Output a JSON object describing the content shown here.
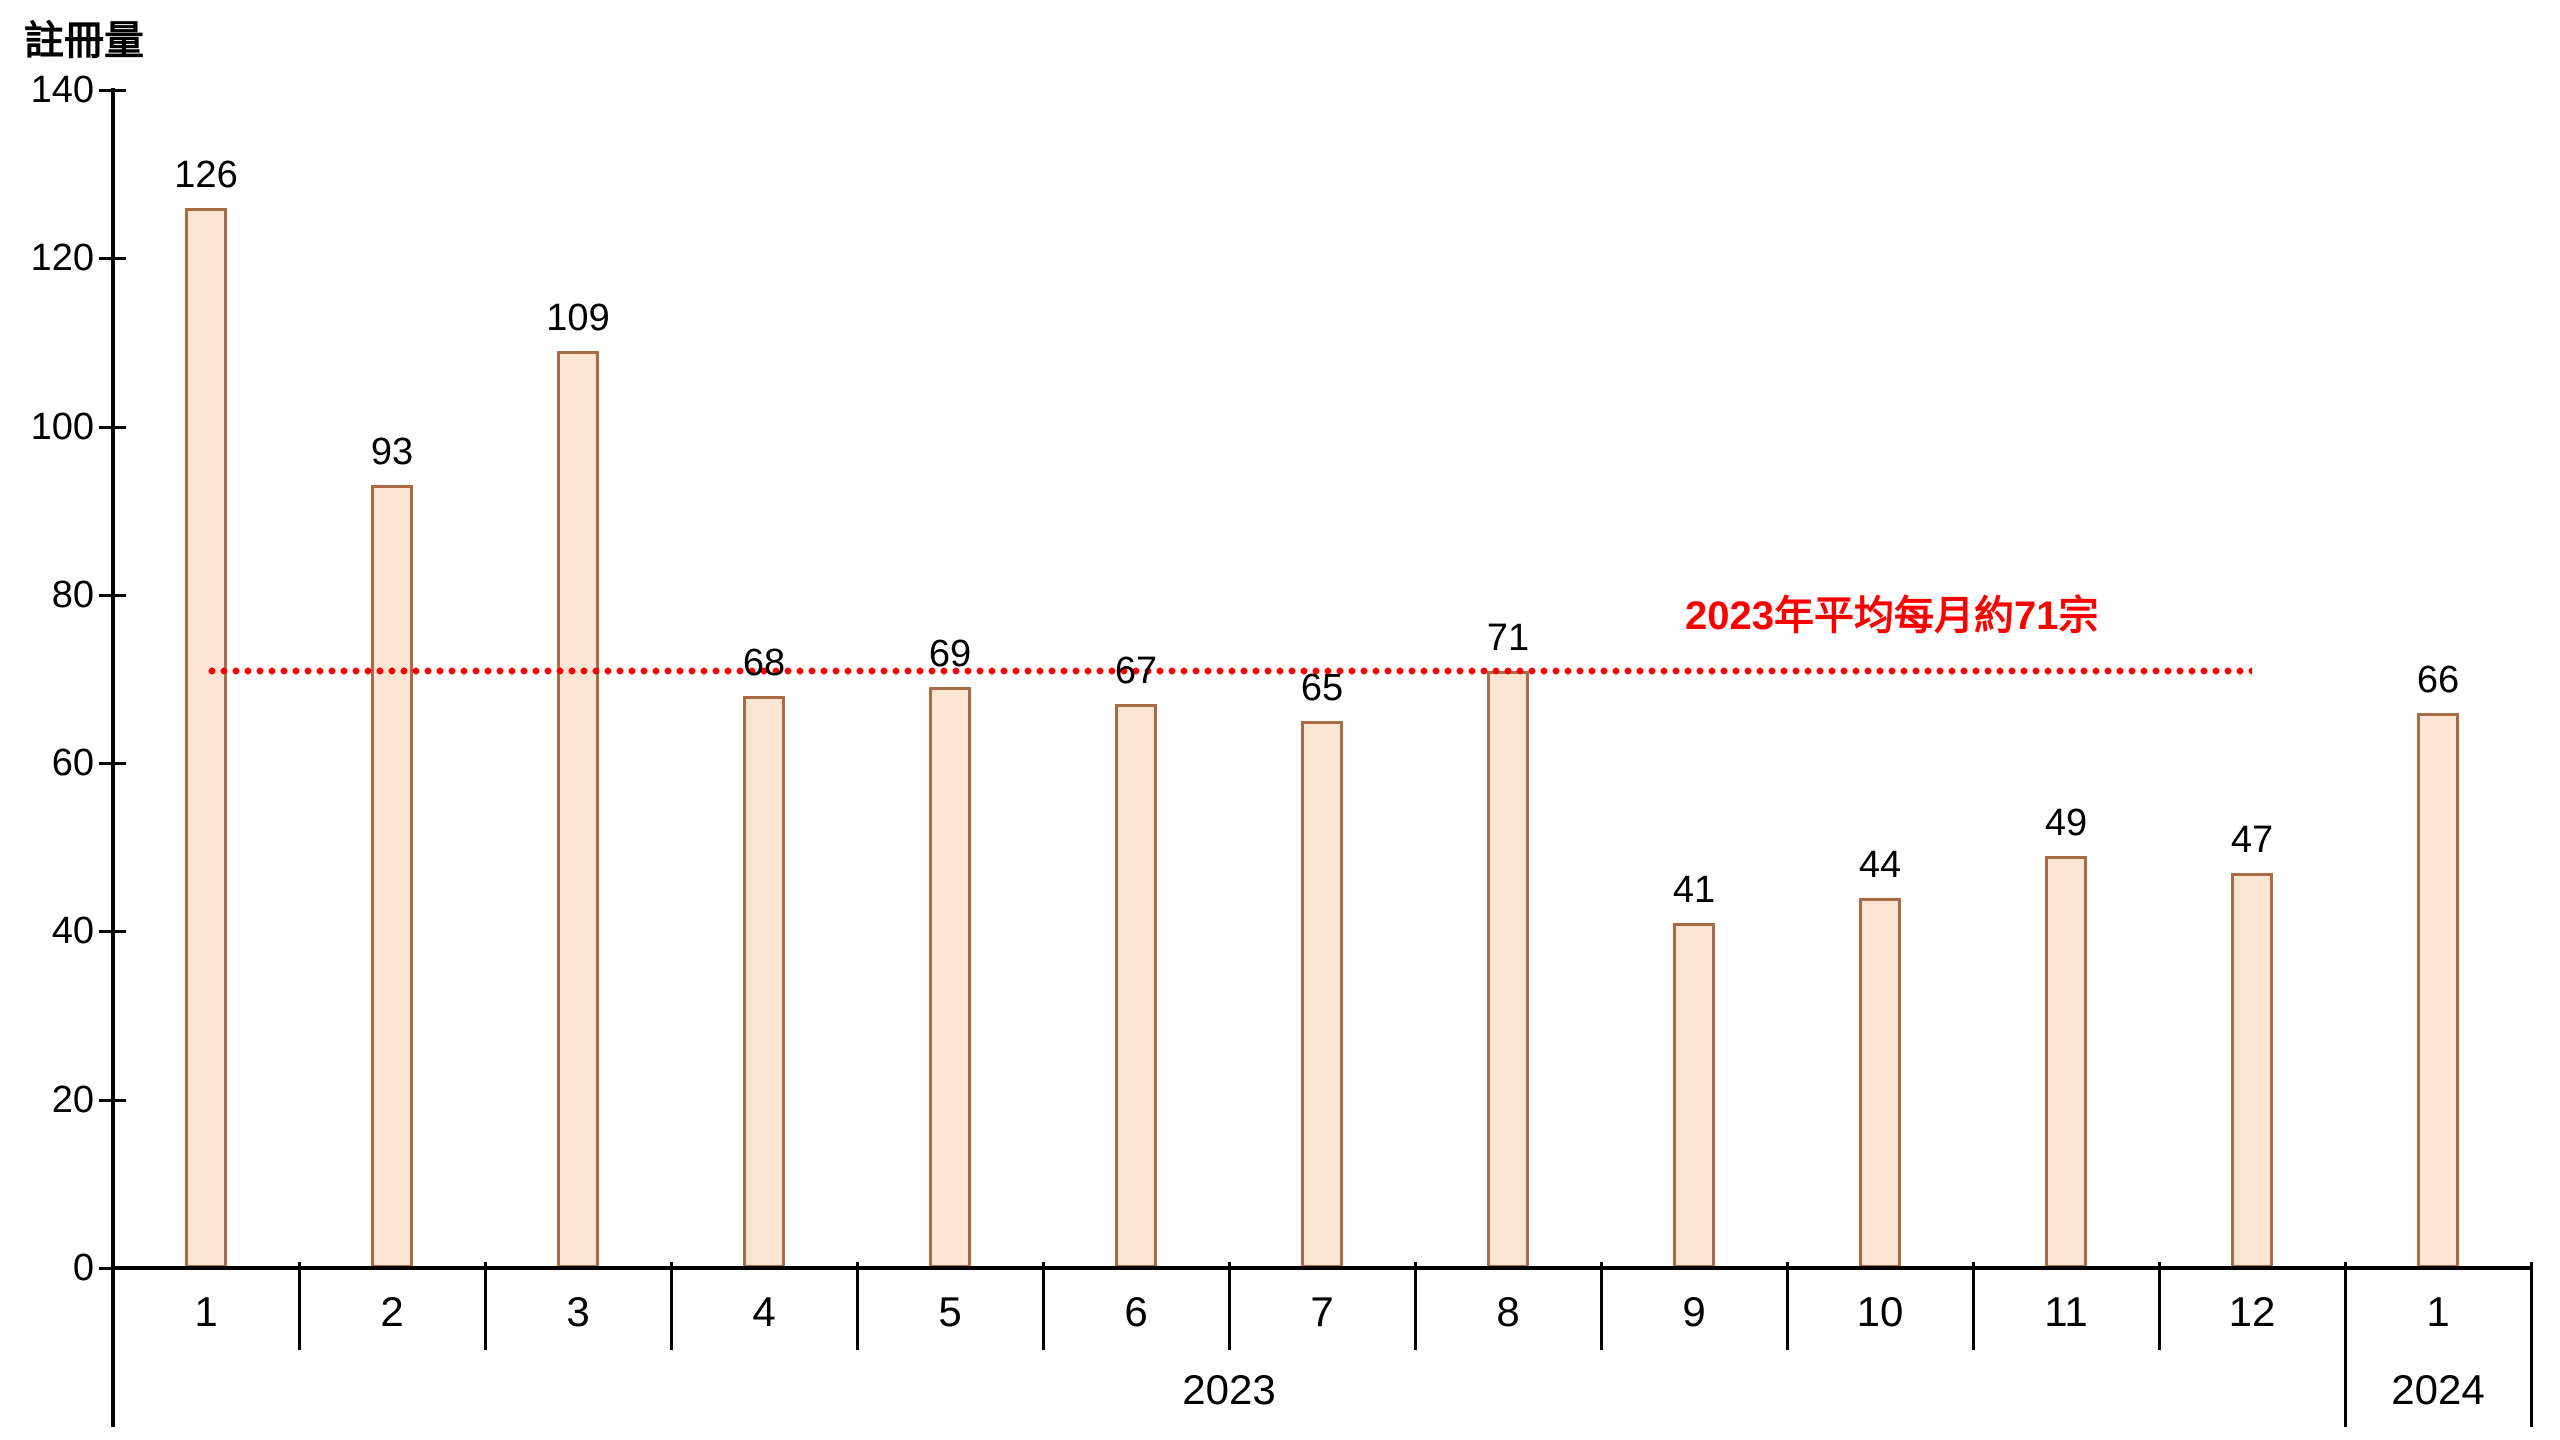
{
  "chart_data": {
    "type": "bar",
    "ylabel": "註冊量",
    "categories": [
      "1",
      "2",
      "3",
      "4",
      "5",
      "6",
      "7",
      "8",
      "9",
      "10",
      "11",
      "12",
      "1"
    ],
    "values": [
      126,
      93,
      109,
      68,
      69,
      67,
      65,
      71,
      41,
      44,
      49,
      47,
      66
    ],
    "year_groups": [
      {
        "label": "2023",
        "start": 0,
        "count": 12
      },
      {
        "label": "2024",
        "start": 12,
        "count": 1
      }
    ],
    "ylim": [
      0,
      140
    ],
    "yticks": [
      0,
      20,
      40,
      60,
      80,
      100,
      120,
      140
    ],
    "average_line": {
      "value": 71,
      "label": "2023年平均每月約71宗",
      "color": "#FF0000",
      "style": "dotted",
      "span_categories": [
        1,
        12
      ]
    },
    "colors": {
      "bar_fill": "#FCE5D3",
      "bar_border": "#A96B43",
      "axis": "#000000",
      "text": "#000000",
      "annotation": "#FF0000"
    },
    "legend": "none",
    "grid": "off"
  }
}
